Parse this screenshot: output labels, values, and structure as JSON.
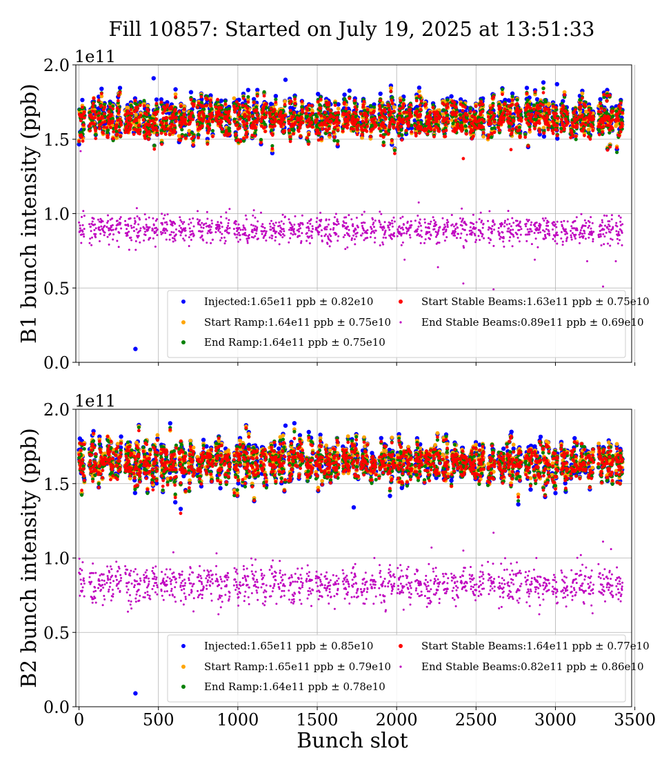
{
  "title": "Fill 10857: Started on July 19, 2025 at 13:51:33",
  "xlabel": "Bunch slot",
  "colors": {
    "injected": "#0000ff",
    "start_ramp": "#ffa500",
    "end_ramp": "#008000",
    "start_stable": "#ff0000",
    "end_stable": "#bf00bf"
  },
  "chart_data": [
    {
      "type": "scatter",
      "title": "",
      "xlabel": "Bunch slot",
      "ylabel": "B1 bunch intensity (ppb)",
      "offset_label": "1e11",
      "xlim": [
        -20,
        3480
      ],
      "ylim": [
        0,
        2.0
      ],
      "x_ticks": [
        "0",
        "500",
        "1000",
        "1500",
        "2000",
        "2500",
        "3000",
        "3500"
      ],
      "x_tick_values": [
        0,
        500,
        1000,
        1500,
        2000,
        2500,
        3000,
        3500
      ],
      "y_ticks": [
        "0.0",
        "0.5",
        "1.0",
        "1.5",
        "2.0"
      ],
      "y_tick_values": [
        0,
        0.5,
        1.0,
        1.5,
        2.0
      ],
      "grid": true,
      "legend_position": "lower-right",
      "series": [
        {
          "name": "Injected:1.65e11 ppb ± 0.82e10",
          "color": "#0000ff",
          "mean": 1.65,
          "std": 0.082,
          "outliers": [
            [
              355,
              0.09
            ],
            [
              1300,
              1.9
            ],
            [
              470,
              1.91
            ],
            [
              3010,
              1.87
            ]
          ]
        },
        {
          "name": "Start Ramp:1.64e11 ppb ± 0.75e10",
          "color": "#ffa500",
          "mean": 1.64,
          "std": 0.075,
          "outliers": []
        },
        {
          "name": "End Ramp:1.64e11 ppb ± 0.75e10",
          "color": "#008000",
          "mean": 1.64,
          "std": 0.075,
          "outliers": []
        },
        {
          "name": "Start Stable Beams:1.63e11 ppb ± 0.75e10",
          "color": "#ff0000",
          "mean": 1.63,
          "std": 0.075,
          "outliers": [
            [
              2420,
              1.37
            ],
            [
              2720,
              1.43
            ]
          ]
        },
        {
          "name": "End Stable Beams:0.89e11 ppb ± 0.69e10",
          "color": "#bf00bf",
          "mean": 0.89,
          "std": 0.069,
          "outliers": [
            [
              2420,
              0.53
            ],
            [
              2610,
              0.49
            ],
            [
              3300,
              0.51
            ],
            [
              2260,
              0.64
            ],
            [
              2050,
              0.69
            ],
            [
              2870,
              0.69
            ],
            [
              3200,
              0.68
            ],
            [
              3380,
              0.68
            ],
            [
              10,
              1.42
            ]
          ]
        }
      ]
    },
    {
      "type": "scatter",
      "title": "",
      "xlabel": "Bunch slot",
      "ylabel": "B2 bunch intensity (ppb)",
      "offset_label": "1e11",
      "xlim": [
        -20,
        3480
      ],
      "ylim": [
        0,
        2.0
      ],
      "x_ticks": [
        "0",
        "500",
        "1000",
        "1500",
        "2000",
        "2500",
        "3000",
        "3500"
      ],
      "x_tick_values": [
        0,
        500,
        1000,
        1500,
        2000,
        2500,
        3000,
        3500
      ],
      "y_ticks": [
        "0.0",
        "0.5",
        "1.0",
        "1.5",
        "2.0"
      ],
      "y_tick_values": [
        0,
        0.5,
        1.0,
        1.5,
        2.0
      ],
      "grid": true,
      "legend_position": "lower-right",
      "series": [
        {
          "name": "Injected:1.65e11 ppb ± 0.85e10",
          "color": "#0000ff",
          "mean": 1.65,
          "std": 0.085,
          "outliers": [
            [
              355,
              0.09
            ],
            [
              1300,
              1.89
            ],
            [
              640,
              1.33
            ],
            [
              1730,
              1.34
            ]
          ]
        },
        {
          "name": "Start Ramp:1.65e11 ppb ± 0.79e10",
          "color": "#ffa500",
          "mean": 1.65,
          "std": 0.079,
          "outliers": []
        },
        {
          "name": "End Ramp:1.64e11 ppb ± 0.78e10",
          "color": "#008000",
          "mean": 1.64,
          "std": 0.078,
          "outliers": []
        },
        {
          "name": "Start Stable Beams:1.64e11 ppb ± 0.77e10",
          "color": "#ff0000",
          "mean": 1.64,
          "std": 0.077,
          "outliers": [
            [
              640,
              1.3
            ]
          ]
        },
        {
          "name": "End Stable Beams:0.82e11 ppb ± 0.86e10",
          "color": "#bf00bf",
          "mean": 0.82,
          "std": 0.086,
          "outliers": [
            [
              2610,
              1.17
            ],
            [
              3300,
              1.11
            ],
            [
              3350,
              1.06
            ],
            [
              2220,
              1.07
            ],
            [
              2420,
              1.05
            ],
            [
              2880,
              1.0
            ],
            [
              3160,
              1.02
            ],
            [
              1860,
              1.0
            ]
          ]
        }
      ]
    }
  ]
}
